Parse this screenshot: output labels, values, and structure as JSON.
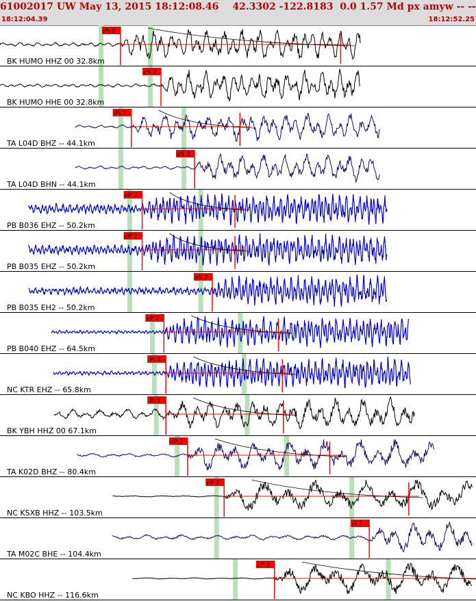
{
  "header": {
    "event_id": "61002017",
    "network": "UW",
    "datetime": "May 13, 2015 18:12:08.46",
    "coords": "42.3302 -122.8183",
    "depth_mag": "0.0 1.57 Md px amyw -- --",
    "count": "5",
    "time_start": "18:12:04.39",
    "time_end": "18:12:52.25"
  },
  "colors": {
    "header_bg": "#dcdcdc",
    "header_text": "#b40000",
    "pick": "#ff0000",
    "window": "#b9e1b9",
    "black": "#000000",
    "navy": "#1e0a5a",
    "blue": "#0000cc"
  },
  "chart_data": {
    "type": "line",
    "x_unit": "seconds after 18:12:04.39",
    "xlim": [
      0,
      47.86
    ],
    "traces": [
      {
        "label": "BK HUMO HHZ 00 32.8km",
        "color": "black",
        "pick_label": "iPc0",
        "pick": 12.2,
        "windows": [
          10.2,
          15.2
        ],
        "coda": 34.5,
        "start": 0.0,
        "end": 36.5,
        "amp": 0.9,
        "period": 0.9,
        "noise": 0.12
      },
      {
        "label": "BK HUMO HHE 00 32.8km",
        "color": "black",
        "pick_label": "eS 2",
        "pick": 16.3,
        "windows": [
          10.2,
          15.2
        ],
        "coda": null,
        "start": 0.0,
        "end": 36.5,
        "amp": 0.9,
        "period": 0.9,
        "noise": 0.1
      },
      {
        "label": "TA L04D BHZ -- 44.1km",
        "color": "navy",
        "pick_label": "iPc1",
        "pick": 13.3,
        "windows": [
          12.2,
          18.6
        ],
        "coda": 24.3,
        "start": 7.6,
        "end": 38.5,
        "amp": 0.8,
        "period": 1.1,
        "noise": 0.1
      },
      {
        "label": "TA L04D BHN -- 44.1km",
        "color": "navy",
        "pick_label": "eS 2",
        "pick": 19.7,
        "windows": [
          12.2,
          18.6
        ],
        "coda": null,
        "start": 7.6,
        "end": 38.5,
        "amp": 0.8,
        "period": 1.1,
        "noise": 0.1
      },
      {
        "label": "PB B036 EHZ -- 50.2km",
        "color": "blue",
        "pick_label": "eP 2",
        "pick": 14.4,
        "windows": [
          13.1,
          20.3
        ],
        "coda": 23.8,
        "start": 2.9,
        "end": 39.2,
        "amp": 0.9,
        "period": 0.35,
        "noise": 0.3
      },
      {
        "label": "PB B035 EHZ -- 50.2km",
        "color": "blue",
        "pick_label": "eP 2",
        "pick": 14.4,
        "windows": [
          13.1,
          20.3
        ],
        "coda": 23.8,
        "start": 2.9,
        "end": 39.2,
        "amp": 0.9,
        "period": 0.35,
        "noise": 0.3
      },
      {
        "label": "PB B035 EH2 -- 50.2km",
        "color": "blue",
        "pick_label": "eS 2",
        "pick": 21.5,
        "windows": [
          13.1,
          20.3
        ],
        "coda": null,
        "start": 2.9,
        "end": 39.2,
        "amp": 0.9,
        "period": 0.35,
        "noise": 0.22
      },
      {
        "label": "PB B040 EHZ -- 64.5km",
        "color": "blue",
        "pick_label": "eP 2",
        "pick": 16.6,
        "windows": [
          15.4,
          24.3
        ],
        "coda": 28.2,
        "start": 5.2,
        "end": 41.4,
        "amp": 0.9,
        "period": 0.35,
        "noise": 0.1
      },
      {
        "label": "NC KTR EHZ -- 65.8km",
        "color": "blue",
        "pick_label": "iPc1",
        "pick": 16.8,
        "windows": [
          15.6,
          24.7
        ],
        "coda": 28.6,
        "start": 5.4,
        "end": 41.6,
        "amp": 0.9,
        "period": 0.35,
        "noise": 0.12
      },
      {
        "label": "BK YBH HHZ 00 67.1km",
        "color": "black",
        "pick_label": "iPc1",
        "pick": 16.8,
        "windows": [
          15.8,
          25.0
        ],
        "coda": 28.7,
        "start": 5.5,
        "end": 42.0,
        "amp": 0.9,
        "period": 1.4,
        "noise": 0.3
      },
      {
        "label": "TA K02D BHZ -- 80.4km",
        "color": "navy",
        "pick_label": "eP 2",
        "pick": 19.0,
        "windows": [
          17.9,
          29.0
        ],
        "coda": 33.4,
        "start": 7.8,
        "end": 44.0,
        "amp": 0.9,
        "period": 1.8,
        "noise": 0.12
      },
      {
        "label": "NC KSXB HHZ -- 103.5km",
        "color": "black",
        "pick_label": "eP 2",
        "pick": 22.7,
        "windows": [
          21.9,
          35.6
        ],
        "coda": 41.4,
        "start": 11.4,
        "end": 47.86,
        "amp": 0.9,
        "period": 2.6,
        "noise": 0.04
      },
      {
        "label": "TA M02C BHE -- 104.4km",
        "color": "navy",
        "pick_label": "iS 1",
        "pick": 37.4,
        "windows": [
          21.9,
          35.6
        ],
        "coda": null,
        "start": 11.4,
        "end": 47.86,
        "amp": 0.9,
        "period": 1.8,
        "noise": 0.15
      },
      {
        "label": "NC KBO HHZ -- 116.6km",
        "color": "black",
        "pick_label": "eP 2",
        "pick": 27.8,
        "windows": [
          23.8,
          39.3
        ],
        "coda": 49.2,
        "start": 13.4,
        "end": 47.86,
        "amp": 0.9,
        "period": 2.4,
        "noise": 0.04
      }
    ]
  }
}
